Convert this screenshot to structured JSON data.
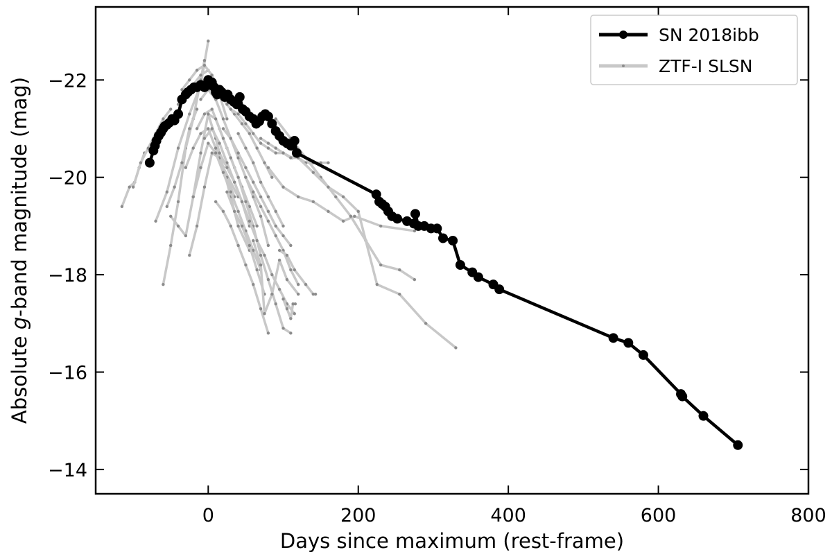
{
  "chart_data": {
    "type": "line",
    "xlabel": "Days since maximum (rest-frame)",
    "ylabel_parts": [
      "Absolute ",
      "g",
      "-band magnitude (mag)"
    ],
    "xlim": [
      -150,
      800
    ],
    "ylim": [
      -23.5,
      -13.5
    ],
    "y_inverted": true,
    "x_ticks": [
      0,
      200,
      400,
      600,
      800
    ],
    "x_tick_labels": [
      "0",
      "200",
      "400",
      "600",
      "800"
    ],
    "y_ticks": [
      -22,
      -20,
      -18,
      -16,
      -14
    ],
    "y_tick_labels": [
      "−22",
      "−20",
      "−18",
      "−16",
      "−14"
    ],
    "grid": false,
    "legend_position": "upper-right",
    "legend": [
      "SN 2018ibb",
      "ZTF-I SLSN"
    ],
    "colors": {
      "sn2018ibb": "#000000",
      "ztf": "#c8c8c8",
      "ztf_marker": "#8c8c8c"
    },
    "series": [
      {
        "name": "SN 2018ibb",
        "x": [
          -78,
          -73,
          -71,
          -69,
          -66,
          -63,
          -60,
          -58,
          -55,
          -52,
          -48,
          -45,
          -40,
          -35,
          -30,
          -27,
          -23,
          -19,
          -15,
          -10,
          -5,
          0,
          2,
          5,
          8,
          10,
          12,
          15,
          18,
          22,
          26,
          30,
          34,
          38,
          42,
          46,
          50,
          55,
          60,
          64,
          68,
          72,
          76,
          80,
          85,
          90,
          95,
          100,
          105,
          110,
          115,
          118,
          224,
          228,
          232,
          236,
          240,
          245,
          252,
          265,
          274,
          276,
          280,
          288,
          297,
          305,
          313,
          326,
          336,
          352,
          360,
          380,
          388,
          540,
          560,
          580,
          630,
          632,
          660,
          706
        ],
        "y": [
          -20.3,
          -20.55,
          -20.65,
          -20.75,
          -20.85,
          -20.92,
          -21.0,
          -21.05,
          -21.08,
          -21.12,
          -21.2,
          -21.17,
          -21.3,
          -21.6,
          -21.7,
          -21.75,
          -21.8,
          -21.85,
          -21.85,
          -21.9,
          -21.85,
          -22.0,
          -21.9,
          -21.95,
          -21.85,
          -21.75,
          -21.7,
          -21.8,
          -21.75,
          -21.65,
          -21.7,
          -21.6,
          -21.55,
          -21.5,
          -21.65,
          -21.4,
          -21.35,
          -21.25,
          -21.2,
          -21.1,
          -21.15,
          -21.25,
          -21.3,
          -21.25,
          -21.1,
          -20.95,
          -20.85,
          -20.75,
          -20.7,
          -20.65,
          -20.75,
          -20.5,
          -19.65,
          -19.5,
          -19.45,
          -19.4,
          -19.3,
          -19.2,
          -19.15,
          -19.1,
          -19.05,
          -19.25,
          -19.0,
          -19.0,
          -18.95,
          -18.95,
          -18.75,
          -18.7,
          -18.2,
          -18.05,
          -17.95,
          -17.8,
          -17.7,
          -16.7,
          -16.6,
          -16.35,
          -15.55,
          -15.5,
          -15.1,
          -14.5
        ]
      }
    ],
    "background_series": [
      {
        "name": "ZTF-I SLSN",
        "x": [
          -115,
          -105,
          -98,
          -92,
          -85
        ],
        "y": [
          -19.4,
          -19.8,
          -19.9,
          -20.2,
          -20.5
        ]
      },
      {
        "x": [
          -100,
          -90,
          -80,
          -70,
          -60,
          -50
        ],
        "y": [
          -19.8,
          -20.3,
          -20.6,
          -20.9,
          -21.2,
          -21.4
        ]
      },
      {
        "x": [
          -70,
          -55,
          -40,
          -25,
          -10,
          0
        ],
        "y": [
          -19.1,
          -19.7,
          -20.6,
          -21.3,
          -21.9,
          -22.8
        ]
      },
      {
        "x": [
          -60,
          -50,
          -40,
          -30,
          -20,
          -10,
          -5
        ],
        "y": [
          -17.8,
          -18.6,
          -19.5,
          -20.6,
          -21.2,
          -22.0,
          -22.4
        ]
      },
      {
        "x": [
          -55,
          -45,
          -35,
          -25,
          -15
        ],
        "y": [
          -19.4,
          -19.8,
          -20.3,
          -21.0,
          -21.4
        ]
      },
      {
        "x": [
          -50,
          -40,
          -30,
          -20,
          -10,
          0,
          10,
          20,
          40
        ],
        "y": [
          -19.2,
          -19.0,
          -18.8,
          -19.6,
          -20.5,
          -21.3,
          -20.8,
          -20.2,
          -19.6
        ]
      },
      {
        "x": [
          -40,
          -30,
          -20,
          -10,
          0
        ],
        "y": [
          -21.5,
          -21.8,
          -21.9,
          -22.1,
          -22.2
        ]
      },
      {
        "x": [
          -35,
          -25,
          -15,
          -5,
          5,
          15,
          25
        ],
        "y": [
          -21.8,
          -22.0,
          -22.2,
          -22.3,
          -22.1,
          -21.7,
          -21.2
        ]
      },
      {
        "x": [
          -30,
          -20,
          -10,
          0,
          10,
          20,
          30,
          40,
          55
        ],
        "y": [
          -20.2,
          -20.6,
          -20.9,
          -21.0,
          -20.6,
          -20.2,
          -19.6,
          -19.0,
          -18.5
        ]
      },
      {
        "x": [
          -25,
          -15,
          -5,
          5,
          15,
          25,
          35
        ],
        "y": [
          -18.4,
          -19.0,
          -19.8,
          -20.5,
          -20.4,
          -20.0,
          -19.6
        ]
      },
      {
        "x": [
          -20,
          -10,
          0,
          10,
          20,
          30,
          40,
          50,
          60,
          70
        ],
        "y": [
          -19.6,
          -20.2,
          -20.7,
          -20.5,
          -20.1,
          -19.7,
          -19.3,
          -18.9,
          -18.5,
          -18.1
        ]
      },
      {
        "x": [
          -15,
          -5,
          5,
          15,
          25,
          35,
          45,
          55,
          65
        ],
        "y": [
          -21.0,
          -21.3,
          -21.4,
          -21.0,
          -20.6,
          -20.2,
          -19.8,
          -19.4,
          -19.0
        ]
      },
      {
        "x": [
          -10,
          0,
          10,
          20,
          30,
          40,
          50,
          60,
          70,
          80
        ],
        "y": [
          -21.6,
          -21.8,
          -21.6,
          -21.2,
          -20.8,
          -20.4,
          -20.0,
          -19.6,
          -19.2,
          -18.6
        ]
      },
      {
        "x": [
          -5,
          5,
          15,
          25,
          35,
          45,
          55
        ],
        "y": [
          -20.8,
          -21.0,
          -20.7,
          -20.3,
          -19.9,
          -19.5,
          -19.0
        ]
      },
      {
        "x": [
          0,
          10,
          20,
          30,
          40,
          50,
          60,
          70,
          80,
          90,
          100,
          110
        ],
        "y": [
          -21.3,
          -21.2,
          -20.8,
          -20.4,
          -20.0,
          -19.5,
          -19.0,
          -18.4,
          -17.9,
          -17.4,
          -16.9,
          -16.8
        ]
      },
      {
        "x": [
          5,
          15,
          25,
          35,
          45,
          55,
          65,
          75,
          85
        ],
        "y": [
          -21.9,
          -21.7,
          -21.5,
          -21.3,
          -21.1,
          -20.9,
          -20.6,
          -20.3,
          -20.0
        ]
      },
      {
        "x": [
          10,
          20,
          30,
          40,
          50,
          60,
          70,
          80
        ],
        "y": [
          -19.5,
          -19.3,
          -19.0,
          -18.6,
          -18.2,
          -17.8,
          -17.3,
          -16.8
        ]
      },
      {
        "x": [
          15,
          25,
          35,
          45,
          55,
          65,
          75,
          85,
          95,
          105,
          115
        ],
        "y": [
          -20.5,
          -20.2,
          -19.9,
          -19.5,
          -19.1,
          -18.7,
          -18.4,
          -18.0,
          -17.7,
          -17.4,
          -17.2
        ]
      },
      {
        "x": [
          20,
          30,
          40,
          50,
          60,
          70,
          80,
          90,
          100,
          110
        ],
        "y": [
          -21.0,
          -20.8,
          -20.5,
          -20.2,
          -19.9,
          -19.6,
          -19.3,
          -19.0,
          -18.8,
          -18.6
        ]
      },
      {
        "x": [
          25,
          35,
          45,
          55,
          65,
          75
        ],
        "y": [
          -19.7,
          -19.3,
          -19.0,
          -18.6,
          -18.1,
          -17.6
        ]
      },
      {
        "x": [
          30,
          40,
          50,
          60,
          70,
          80,
          90,
          100,
          112
        ],
        "y": [
          -21.4,
          -21.3,
          -21.1,
          -20.9,
          -20.7,
          -20.6,
          -20.5,
          -20.5,
          -20.4
        ]
      },
      {
        "x": [
          40,
          50,
          60,
          70,
          80,
          90,
          100
        ],
        "y": [
          -20.9,
          -20.6,
          -20.3,
          -19.9,
          -19.6,
          -19.3,
          -19.0
        ]
      },
      {
        "x": [
          50,
          60,
          70,
          80,
          90,
          100,
          110,
          120
        ],
        "y": [
          -20.0,
          -19.7,
          -19.4,
          -19.1,
          -18.8,
          -18.5,
          -18.1,
          -17.8
        ]
      },
      {
        "x": [
          60,
          70,
          75,
          85,
          95,
          105,
          120
        ],
        "y": [
          -18.7,
          -18.2,
          -17.2,
          -17.6,
          -18.3,
          -17.9,
          -17.6
        ]
      },
      {
        "x": [
          70,
          80,
          90,
          100,
          110,
          120,
          130,
          140,
          150,
          160
        ],
        "y": [
          -20.8,
          -20.7,
          -20.6,
          -20.5,
          -20.4,
          -20.4,
          -20.3,
          -20.3,
          -20.3,
          -20.3
        ]
      },
      {
        "x": [
          80,
          100,
          120,
          140,
          160,
          180,
          195,
          230,
          275
        ],
        "y": [
          -20.2,
          -19.8,
          -19.6,
          -19.5,
          -19.3,
          -19.1,
          -19.2,
          -19.0,
          -18.9
        ]
      },
      {
        "x": [
          90,
          110,
          130,
          150,
          170,
          190,
          210,
          230,
          255,
          275
        ],
        "y": [
          -21.2,
          -20.8,
          -20.4,
          -20.0,
          -19.6,
          -19.2,
          -18.7,
          -18.2,
          -18.1,
          -17.9
        ]
      },
      {
        "x": [
          100,
          120,
          140,
          160,
          180,
          200,
          225,
          255,
          290,
          330
        ],
        "y": [
          -20.8,
          -20.4,
          -20.1,
          -19.8,
          -19.6,
          -19.3,
          -17.8,
          -17.6,
          -17.0,
          -16.5
        ]
      },
      {
        "x": [
          95,
          105,
          115,
          130,
          140,
          143
        ],
        "y": [
          -18.5,
          -18.4,
          -18.1,
          -17.8,
          -17.6,
          -17.6
        ]
      },
      {
        "x": [
          100,
          105,
          110,
          113,
          116
        ],
        "y": [
          -17.5,
          -17.3,
          -17.1,
          -17.4,
          -17.4
        ]
      }
    ]
  }
}
